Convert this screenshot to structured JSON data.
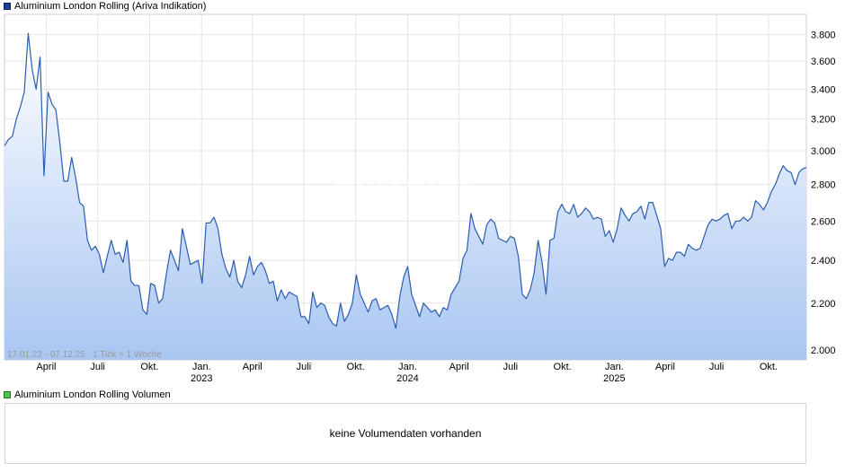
{
  "legend": {
    "price_label": "Aluminium London Rolling (Ariva Indikation)",
    "price_color": "#1c3f94",
    "volume_label": "Aluminium London Rolling Volumen",
    "volume_color": "#4dc24d"
  },
  "watermark": "ARIVA.DE",
  "range_info": "17.01.22 - 07.12.25   1 Tick = 1 Woche",
  "volume_message": "keine Volumendaten vorhanden",
  "colors": {
    "line": "#2a5db0",
    "fill_top": "#ffffff",
    "fill_bottom": "#a9c6f2",
    "grid": "#e4e4e4"
  },
  "chart_data": {
    "type": "area",
    "title": "Aluminium London Rolling (Ariva Indikation)",
    "x_range": [
      "2022-01-17",
      "2025-12-07"
    ],
    "y_scale": "log",
    "ylim": [
      1960,
      3960
    ],
    "yticks": [
      2000,
      2200,
      2400,
      2600,
      2800,
      3000,
      3200,
      3400,
      3600,
      3800
    ],
    "ytick_labels": [
      "2.000",
      "2.200",
      "2.400",
      "2.600",
      "2.800",
      "3.000",
      "3.200",
      "3.400",
      "3.600",
      "3.800"
    ],
    "xticks": [
      {
        "date": "2022-04-01",
        "label": "April",
        "year": ""
      },
      {
        "date": "2022-07-01",
        "label": "Juli",
        "year": ""
      },
      {
        "date": "2022-10-01",
        "label": "Okt.",
        "year": ""
      },
      {
        "date": "2023-01-01",
        "label": "Jan.",
        "year": "2023"
      },
      {
        "date": "2023-04-01",
        "label": "April",
        "year": ""
      },
      {
        "date": "2023-07-01",
        "label": "Juli",
        "year": ""
      },
      {
        "date": "2023-10-01",
        "label": "Okt.",
        "year": ""
      },
      {
        "date": "2024-01-01",
        "label": "Jan.",
        "year": "2024"
      },
      {
        "date": "2024-04-01",
        "label": "April",
        "year": ""
      },
      {
        "date": "2024-07-01",
        "label": "Juli",
        "year": ""
      },
      {
        "date": "2024-10-01",
        "label": "Okt.",
        "year": ""
      },
      {
        "date": "2025-01-01",
        "label": "Jan.",
        "year": "2025"
      },
      {
        "date": "2025-04-01",
        "label": "April",
        "year": ""
      },
      {
        "date": "2025-07-01",
        "label": "Juli",
        "year": ""
      },
      {
        "date": "2025-10-01",
        "label": "Okt.",
        "year": ""
      }
    ],
    "grid": true,
    "series": [
      {
        "name": "Aluminium London Rolling (Ariva Indikation)",
        "points": [
          [
            "2022-01-17",
            3030
          ],
          [
            "2022-01-24",
            3070
          ],
          [
            "2022-01-31",
            3090
          ],
          [
            "2022-02-07",
            3200
          ],
          [
            "2022-02-14",
            3280
          ],
          [
            "2022-02-21",
            3380
          ],
          [
            "2022-02-28",
            3810
          ],
          [
            "2022-03-07",
            3540
          ],
          [
            "2022-03-14",
            3400
          ],
          [
            "2022-03-21",
            3630
          ],
          [
            "2022-03-28",
            2850
          ],
          [
            "2022-04-04",
            3380
          ],
          [
            "2022-04-11",
            3300
          ],
          [
            "2022-04-18",
            3260
          ],
          [
            "2022-04-25",
            3050
          ],
          [
            "2022-05-02",
            2820
          ],
          [
            "2022-05-09",
            2820
          ],
          [
            "2022-05-16",
            2960
          ],
          [
            "2022-05-23",
            2840
          ],
          [
            "2022-05-30",
            2700
          ],
          [
            "2022-06-06",
            2680
          ],
          [
            "2022-06-13",
            2500
          ],
          [
            "2022-06-20",
            2450
          ],
          [
            "2022-06-27",
            2470
          ],
          [
            "2022-07-04",
            2430
          ],
          [
            "2022-07-11",
            2340
          ],
          [
            "2022-07-18",
            2420
          ],
          [
            "2022-07-25",
            2500
          ],
          [
            "2022-08-01",
            2430
          ],
          [
            "2022-08-08",
            2440
          ],
          [
            "2022-08-15",
            2390
          ],
          [
            "2022-08-22",
            2500
          ],
          [
            "2022-08-29",
            2300
          ],
          [
            "2022-09-05",
            2280
          ],
          [
            "2022-09-12",
            2280
          ],
          [
            "2022-09-19",
            2170
          ],
          [
            "2022-09-26",
            2150
          ],
          [
            "2022-10-03",
            2290
          ],
          [
            "2022-10-10",
            2280
          ],
          [
            "2022-10-17",
            2200
          ],
          [
            "2022-10-24",
            2220
          ],
          [
            "2022-10-31",
            2340
          ],
          [
            "2022-11-07",
            2450
          ],
          [
            "2022-11-14",
            2400
          ],
          [
            "2022-11-21",
            2350
          ],
          [
            "2022-11-28",
            2560
          ],
          [
            "2022-12-05",
            2470
          ],
          [
            "2022-12-12",
            2380
          ],
          [
            "2022-12-19",
            2390
          ],
          [
            "2022-12-26",
            2400
          ],
          [
            "2023-01-02",
            2290
          ],
          [
            "2023-01-09",
            2590
          ],
          [
            "2023-01-16",
            2590
          ],
          [
            "2023-01-23",
            2620
          ],
          [
            "2023-01-30",
            2560
          ],
          [
            "2023-02-06",
            2430
          ],
          [
            "2023-02-13",
            2360
          ],
          [
            "2023-02-20",
            2320
          ],
          [
            "2023-02-27",
            2400
          ],
          [
            "2023-03-06",
            2300
          ],
          [
            "2023-03-13",
            2270
          ],
          [
            "2023-03-20",
            2330
          ],
          [
            "2023-03-27",
            2420
          ],
          [
            "2023-04-03",
            2330
          ],
          [
            "2023-04-10",
            2370
          ],
          [
            "2023-04-17",
            2390
          ],
          [
            "2023-04-24",
            2350
          ],
          [
            "2023-05-01",
            2290
          ],
          [
            "2023-05-08",
            2300
          ],
          [
            "2023-05-15",
            2210
          ],
          [
            "2023-05-22",
            2260
          ],
          [
            "2023-05-29",
            2220
          ],
          [
            "2023-06-05",
            2250
          ],
          [
            "2023-06-12",
            2240
          ],
          [
            "2023-06-19",
            2230
          ],
          [
            "2023-06-26",
            2140
          ],
          [
            "2023-07-03",
            2140
          ],
          [
            "2023-07-10",
            2110
          ],
          [
            "2023-07-17",
            2250
          ],
          [
            "2023-07-24",
            2180
          ],
          [
            "2023-07-31",
            2200
          ],
          [
            "2023-08-07",
            2190
          ],
          [
            "2023-08-14",
            2140
          ],
          [
            "2023-08-21",
            2110
          ],
          [
            "2023-08-28",
            2100
          ],
          [
            "2023-09-04",
            2200
          ],
          [
            "2023-09-11",
            2120
          ],
          [
            "2023-09-18",
            2150
          ],
          [
            "2023-09-25",
            2200
          ],
          [
            "2023-10-02",
            2330
          ],
          [
            "2023-10-09",
            2240
          ],
          [
            "2023-10-16",
            2200
          ],
          [
            "2023-10-23",
            2160
          ],
          [
            "2023-10-30",
            2210
          ],
          [
            "2023-11-06",
            2220
          ],
          [
            "2023-11-13",
            2170
          ],
          [
            "2023-11-20",
            2180
          ],
          [
            "2023-11-27",
            2190
          ],
          [
            "2023-12-04",
            2150
          ],
          [
            "2023-12-11",
            2090
          ],
          [
            "2023-12-18",
            2230
          ],
          [
            "2023-12-25",
            2320
          ],
          [
            "2024-01-01",
            2370
          ],
          [
            "2024-01-08",
            2240
          ],
          [
            "2024-01-15",
            2190
          ],
          [
            "2024-01-22",
            2140
          ],
          [
            "2024-01-29",
            2200
          ],
          [
            "2024-02-05",
            2180
          ],
          [
            "2024-02-12",
            2160
          ],
          [
            "2024-02-19",
            2170
          ],
          [
            "2024-02-26",
            2140
          ],
          [
            "2024-03-04",
            2180
          ],
          [
            "2024-03-11",
            2170
          ],
          [
            "2024-03-18",
            2240
          ],
          [
            "2024-03-25",
            2270
          ],
          [
            "2024-04-01",
            2300
          ],
          [
            "2024-04-08",
            2410
          ],
          [
            "2024-04-15",
            2450
          ],
          [
            "2024-04-22",
            2640
          ],
          [
            "2024-04-29",
            2560
          ],
          [
            "2024-05-06",
            2520
          ],
          [
            "2024-05-13",
            2480
          ],
          [
            "2024-05-20",
            2580
          ],
          [
            "2024-05-27",
            2610
          ],
          [
            "2024-06-03",
            2590
          ],
          [
            "2024-06-10",
            2510
          ],
          [
            "2024-06-17",
            2500
          ],
          [
            "2024-06-24",
            2490
          ],
          [
            "2024-07-01",
            2520
          ],
          [
            "2024-07-08",
            2510
          ],
          [
            "2024-07-15",
            2420
          ],
          [
            "2024-07-22",
            2240
          ],
          [
            "2024-07-29",
            2220
          ],
          [
            "2024-08-05",
            2260
          ],
          [
            "2024-08-12",
            2340
          ],
          [
            "2024-08-19",
            2500
          ],
          [
            "2024-08-26",
            2390
          ],
          [
            "2024-09-02",
            2240
          ],
          [
            "2024-09-09",
            2500
          ],
          [
            "2024-09-16",
            2510
          ],
          [
            "2024-09-23",
            2650
          ],
          [
            "2024-09-30",
            2690
          ],
          [
            "2024-10-07",
            2650
          ],
          [
            "2024-10-14",
            2640
          ],
          [
            "2024-10-21",
            2690
          ],
          [
            "2024-10-28",
            2620
          ],
          [
            "2024-11-04",
            2640
          ],
          [
            "2024-11-11",
            2670
          ],
          [
            "2024-11-18",
            2650
          ],
          [
            "2024-11-25",
            2610
          ],
          [
            "2024-12-02",
            2620
          ],
          [
            "2024-12-09",
            2610
          ],
          [
            "2024-12-16",
            2520
          ],
          [
            "2024-12-23",
            2550
          ],
          [
            "2024-12-30",
            2490
          ],
          [
            "2025-01-06",
            2560
          ],
          [
            "2025-01-13",
            2670
          ],
          [
            "2025-01-20",
            2630
          ],
          [
            "2025-01-27",
            2600
          ],
          [
            "2025-02-03",
            2640
          ],
          [
            "2025-02-10",
            2650
          ],
          [
            "2025-02-17",
            2680
          ],
          [
            "2025-02-24",
            2610
          ],
          [
            "2025-03-03",
            2700
          ],
          [
            "2025-03-10",
            2700
          ],
          [
            "2025-03-17",
            2630
          ],
          [
            "2025-03-24",
            2560
          ],
          [
            "2025-03-31",
            2370
          ],
          [
            "2025-04-07",
            2410
          ],
          [
            "2025-04-14",
            2400
          ],
          [
            "2025-04-21",
            2440
          ],
          [
            "2025-04-28",
            2440
          ],
          [
            "2025-05-05",
            2420
          ],
          [
            "2025-05-12",
            2480
          ],
          [
            "2025-05-19",
            2460
          ],
          [
            "2025-05-26",
            2450
          ],
          [
            "2025-06-02",
            2460
          ],
          [
            "2025-06-09",
            2520
          ],
          [
            "2025-06-16",
            2580
          ],
          [
            "2025-06-23",
            2610
          ],
          [
            "2025-06-30",
            2600
          ],
          [
            "2025-07-07",
            2610
          ],
          [
            "2025-07-14",
            2630
          ],
          [
            "2025-07-21",
            2640
          ],
          [
            "2025-07-28",
            2560
          ],
          [
            "2025-08-04",
            2600
          ],
          [
            "2025-08-11",
            2600
          ],
          [
            "2025-08-18",
            2620
          ],
          [
            "2025-08-25",
            2600
          ],
          [
            "2025-09-01",
            2620
          ],
          [
            "2025-09-08",
            2710
          ],
          [
            "2025-09-15",
            2690
          ],
          [
            "2025-09-22",
            2660
          ],
          [
            "2025-09-29",
            2700
          ],
          [
            "2025-10-06",
            2760
          ],
          [
            "2025-10-13",
            2800
          ],
          [
            "2025-10-20",
            2860
          ],
          [
            "2025-10-27",
            2910
          ],
          [
            "2025-11-03",
            2880
          ],
          [
            "2025-11-10",
            2870
          ],
          [
            "2025-11-17",
            2800
          ],
          [
            "2025-11-24",
            2870
          ],
          [
            "2025-11-30",
            2890
          ],
          [
            "2025-12-07",
            2900
          ]
        ]
      }
    ]
  }
}
